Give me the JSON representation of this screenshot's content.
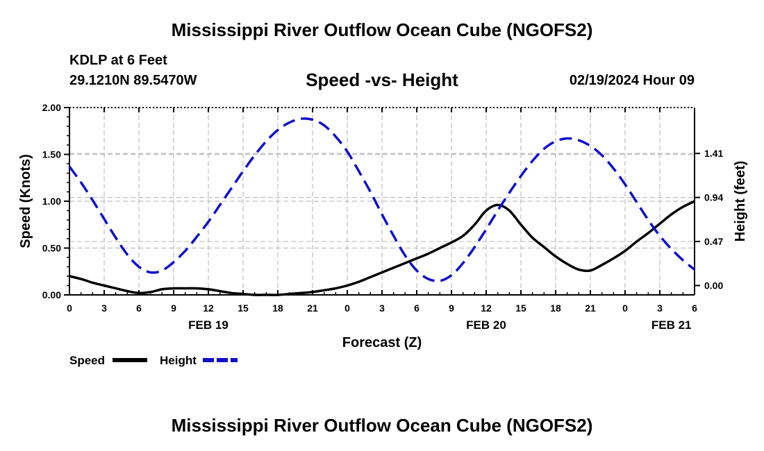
{
  "header": {
    "main_title": "Mississippi River Outflow Ocean Cube (NGOFS2)",
    "station": "KDLP at 6 Feet",
    "coords": "29.1210N  89.5470W",
    "subtitle": "Speed -vs- Height",
    "date": "02/19/2024 Hour 09"
  },
  "footer": {
    "title": "Mississippi River Outflow Ocean Cube (NGOFS2)"
  },
  "chart_data": {
    "type": "line",
    "xlabel": "Forecast (Z)",
    "ylabel_left": "Speed (Knots)",
    "ylabel_right": "Height (feet)",
    "x_range": [
      0,
      54
    ],
    "x_ticks": [
      0,
      3,
      6,
      9,
      12,
      15,
      18,
      21,
      24,
      27,
      30,
      33,
      36,
      39,
      42,
      45,
      48,
      51,
      54
    ],
    "x_tick_labels": [
      "0",
      "3",
      "6",
      "9",
      "12",
      "15",
      "18",
      "21",
      "0",
      "3",
      "6",
      "9",
      "12",
      "15",
      "18",
      "21",
      "0",
      "3",
      "6"
    ],
    "date_labels": [
      {
        "x": 12,
        "text": "FEB 19"
      },
      {
        "x": 36,
        "text": "FEB 20"
      },
      {
        "x": 52,
        "text": "FEB 21"
      }
    ],
    "y_left_range": [
      0,
      2
    ],
    "y_left_ticks": [
      0,
      0.5,
      1,
      1.5,
      2
    ],
    "y_left_tick_labels": [
      "0.00",
      "0.50",
      "1.00",
      "1.50",
      "2.00"
    ],
    "y_right_range": [
      -0.1,
      1.9
    ],
    "y_right_ticks": [
      0,
      0.47,
      0.94,
      1.41
    ],
    "y_right_tick_labels": [
      "0.00",
      "0.47",
      "0.94",
      "1.41"
    ],
    "grid": true,
    "series": [
      {
        "name": "Speed",
        "axis": "left",
        "color": "#000000",
        "style": "solid",
        "x": [
          0,
          1,
          2,
          3,
          4,
          5,
          6,
          7,
          8,
          9,
          10,
          11,
          12,
          13,
          14,
          15,
          16,
          17,
          18,
          19,
          20,
          21,
          22,
          23,
          24,
          25,
          26,
          27,
          28,
          29,
          30,
          31,
          32,
          33,
          34,
          35,
          36,
          37,
          38,
          39,
          40,
          41,
          42,
          43,
          44,
          45,
          46,
          47,
          48,
          49,
          50,
          51,
          52,
          53,
          54
        ],
        "values": [
          0.2,
          0.17,
          0.13,
          0.1,
          0.07,
          0.04,
          0.02,
          0.03,
          0.06,
          0.07,
          0.07,
          0.07,
          0.06,
          0.04,
          0.02,
          0.01,
          0.0,
          0.0,
          0.0,
          0.01,
          0.02,
          0.03,
          0.05,
          0.07,
          0.1,
          0.14,
          0.19,
          0.24,
          0.29,
          0.34,
          0.39,
          0.44,
          0.5,
          0.56,
          0.63,
          0.75,
          0.9,
          0.96,
          0.9,
          0.75,
          0.61,
          0.51,
          0.41,
          0.33,
          0.27,
          0.26,
          0.32,
          0.39,
          0.47,
          0.57,
          0.66,
          0.76,
          0.86,
          0.94,
          1.0
        ]
      },
      {
        "name": "Height",
        "axis": "right",
        "color": "#1010cc",
        "style": "dashed",
        "x": [
          0,
          1,
          2,
          3,
          4,
          5,
          6,
          7,
          8,
          9,
          10,
          11,
          12,
          13,
          14,
          15,
          16,
          17,
          18,
          19,
          20,
          21,
          22,
          23,
          24,
          25,
          26,
          27,
          28,
          29,
          30,
          31,
          32,
          33,
          34,
          35,
          36,
          37,
          38,
          39,
          40,
          41,
          42,
          43,
          44,
          45,
          46,
          47,
          48,
          49,
          50,
          51,
          52,
          53,
          54
        ],
        "values": [
          1.27,
          1.1,
          0.91,
          0.71,
          0.51,
          0.33,
          0.2,
          0.14,
          0.16,
          0.25,
          0.37,
          0.52,
          0.68,
          0.86,
          1.04,
          1.22,
          1.39,
          1.54,
          1.66,
          1.74,
          1.78,
          1.77,
          1.71,
          1.59,
          1.43,
          1.22,
          1.0,
          0.76,
          0.53,
          0.32,
          0.16,
          0.07,
          0.05,
          0.11,
          0.24,
          0.41,
          0.6,
          0.8,
          0.99,
          1.17,
          1.33,
          1.46,
          1.54,
          1.57,
          1.55,
          1.49,
          1.39,
          1.25,
          1.08,
          0.89,
          0.7,
          0.53,
          0.39,
          0.27,
          0.17
        ]
      }
    ]
  },
  "legend": {
    "items": [
      {
        "label": "Speed",
        "color": "#000000",
        "style": "solid"
      },
      {
        "label": "Height",
        "color": "#1010cc",
        "style": "dashed"
      }
    ]
  }
}
